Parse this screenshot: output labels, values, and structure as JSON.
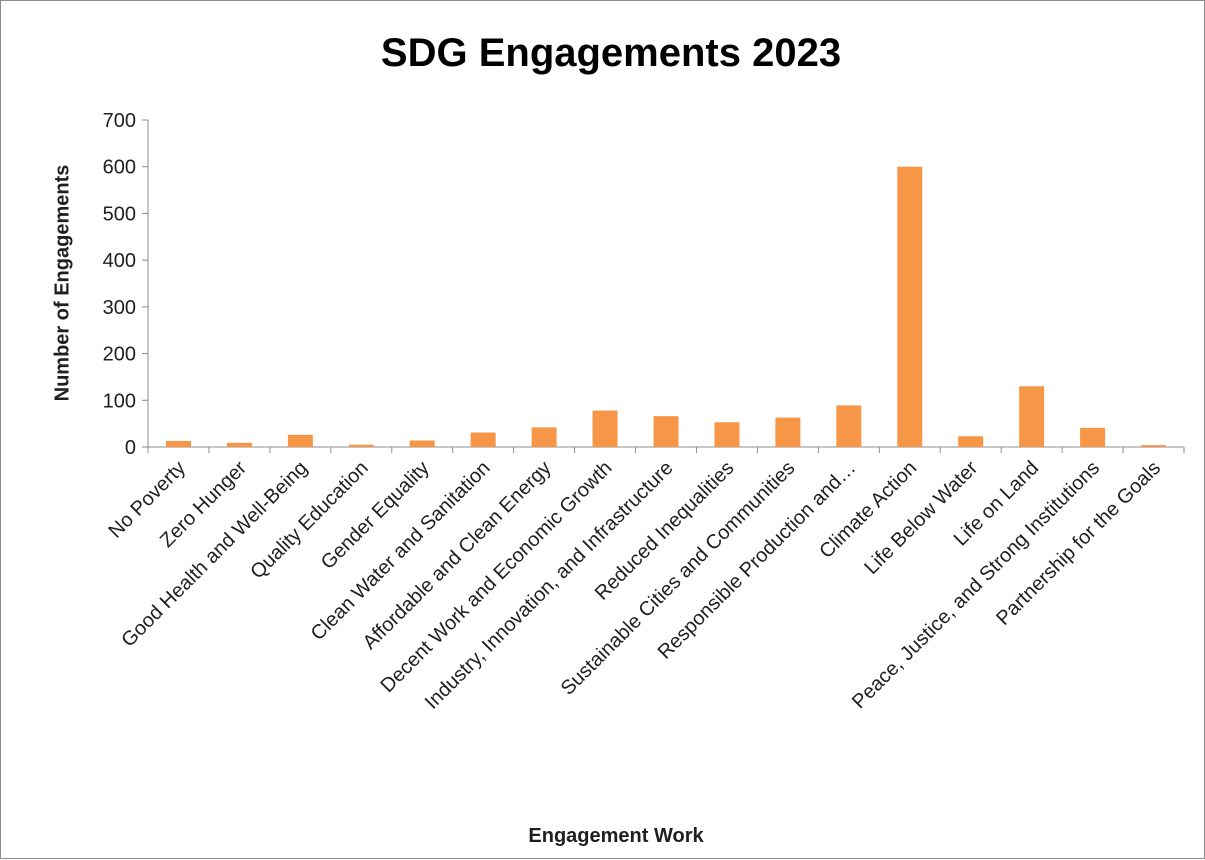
{
  "chart_data": {
    "type": "bar",
    "title": "SDG Engagements 2023",
    "xlabel": "Engagement Work",
    "ylabel": "Number of Engagements",
    "ylim": [
      0,
      700
    ],
    "yticks": [
      0,
      100,
      200,
      300,
      400,
      500,
      600,
      700
    ],
    "grid": false,
    "bar_color": "#F79646",
    "categories": [
      "No Poverty",
      "Zero Hunger",
      "Good Health and Well-Being",
      "Quality Education",
      "Gender Equality",
      "Clean Water and Sanitation",
      "Affordable and Clean Energy",
      "Decent Work and Economic Growth",
      "Industry, Innovation, and Infrastructure",
      "Reduced Inequalities",
      "Sustainable Cities and Communities",
      "Responsible Production and…",
      "Climate Action",
      "Life Below Water",
      "Life on Land",
      "Peace, Justice, and Strong Institutions",
      "Partnership for the Goals"
    ],
    "values": [
      13,
      9,
      26,
      5,
      14,
      31,
      42,
      78,
      66,
      53,
      63,
      89,
      600,
      23,
      130,
      41,
      4
    ]
  }
}
